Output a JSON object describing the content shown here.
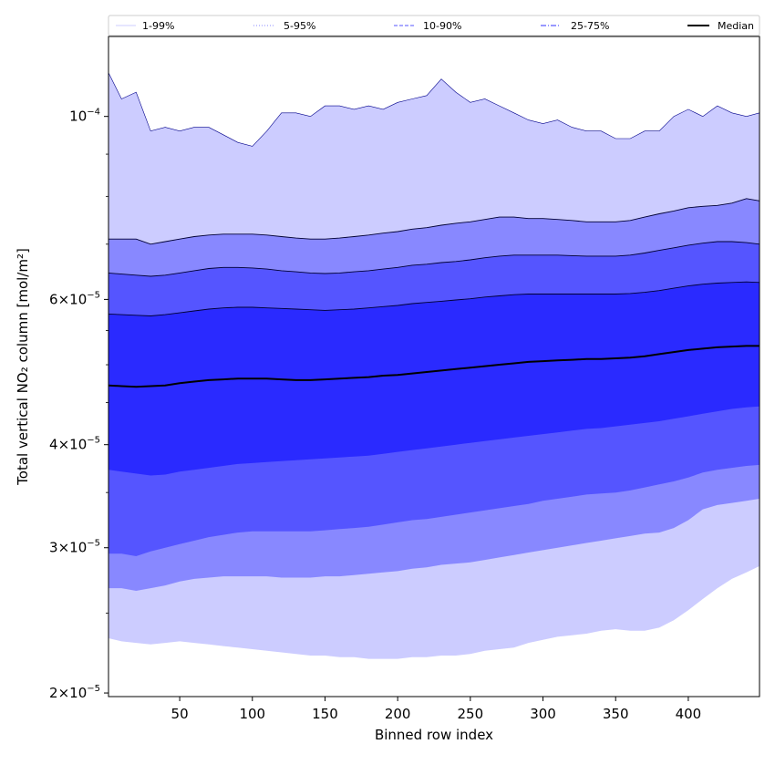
{
  "chart_data": {
    "type": "area",
    "xlabel": "Binned row index",
    "ylabel": "Total vertical NO₂ column [mol/m²]",
    "y_scale": "log",
    "xlim": [
      1,
      449
    ],
    "ylim": [
      1.98e-05,
      0.000125
    ],
    "x_ticks": [
      50,
      100,
      150,
      200,
      250,
      300,
      350,
      400
    ],
    "x_tick_labels": [
      "50",
      "100",
      "150",
      "200",
      "250",
      "300",
      "350",
      "400"
    ],
    "y_ticks": [
      {
        "value": 2e-05,
        "mantissa": "2",
        "exponent": "−5"
      },
      {
        "value": 3e-05,
        "mantissa": "3",
        "exponent": "−5"
      },
      {
        "value": 4e-05,
        "mantissa": "4",
        "exponent": "−5"
      },
      {
        "value": 6e-05,
        "mantissa": "6",
        "exponent": "−5"
      },
      {
        "value": 0.0001,
        "mantissa": "",
        "exponent": "−4"
      }
    ],
    "grid": false,
    "legend_position": "top (above plot, single row)",
    "legend": [
      {
        "label": "1-99%",
        "color": "#ccccff",
        "line": "solid"
      },
      {
        "label": "5-95%",
        "color": "#8888ff",
        "line": "dotted"
      },
      {
        "label": "10-90%",
        "color": "#5555ff",
        "line": "dashed"
      },
      {
        "label": "25-75%",
        "color": "#3333ff",
        "line": "dashdot"
      },
      {
        "label": "Median",
        "color": "#000000",
        "line": "solid"
      }
    ],
    "x": [
      1,
      10,
      20,
      30,
      40,
      50,
      60,
      70,
      80,
      90,
      100,
      110,
      120,
      130,
      140,
      150,
      160,
      170,
      180,
      190,
      200,
      210,
      220,
      230,
      240,
      250,
      260,
      270,
      280,
      290,
      300,
      310,
      320,
      330,
      340,
      350,
      360,
      370,
      380,
      390,
      400,
      410,
      420,
      430,
      440,
      449
    ],
    "series": [
      {
        "name": "1-99%",
        "color": "#ccccff",
        "lower": [
          2.33e-05,
          2.31e-05,
          2.3e-05,
          2.29e-05,
          2.3e-05,
          2.31e-05,
          2.3e-05,
          2.29e-05,
          2.28e-05,
          2.27e-05,
          2.26e-05,
          2.25e-05,
          2.24e-05,
          2.23e-05,
          2.22e-05,
          2.22e-05,
          2.21e-05,
          2.21e-05,
          2.2e-05,
          2.2e-05,
          2.2e-05,
          2.21e-05,
          2.21e-05,
          2.22e-05,
          2.22e-05,
          2.23e-05,
          2.25e-05,
          2.26e-05,
          2.27e-05,
          2.3e-05,
          2.32e-05,
          2.34e-05,
          2.35e-05,
          2.36e-05,
          2.38e-05,
          2.39e-05,
          2.38e-05,
          2.38e-05,
          2.4e-05,
          2.45e-05,
          2.52e-05,
          2.6e-05,
          2.68e-05,
          2.75e-05,
          2.8e-05,
          2.85e-05
        ],
        "upper": [
          0.000113,
          0.000105,
          0.000107,
          9.6e-05,
          9.7e-05,
          9.6e-05,
          9.7e-05,
          9.7e-05,
          9.5e-05,
          9.3e-05,
          9.2e-05,
          9.6e-05,
          0.000101,
          0.000101,
          0.0001,
          0.000103,
          0.000103,
          0.000102,
          0.000103,
          0.000102,
          0.000104,
          0.000105,
          0.000106,
          0.000111,
          0.000107,
          0.000104,
          0.000105,
          0.000103,
          0.000101,
          9.9e-05,
          9.8e-05,
          9.9e-05,
          9.7e-05,
          9.6e-05,
          9.6e-05,
          9.4e-05,
          9.4e-05,
          9.6e-05,
          9.6e-05,
          0.0001,
          0.000102,
          0.0001,
          0.000103,
          0.000101,
          0.0001,
          0.000101
        ]
      },
      {
        "name": "5-95%",
        "color": "#8888ff",
        "lower": [
          2.68e-05,
          2.68e-05,
          2.66e-05,
          2.68e-05,
          2.7e-05,
          2.73e-05,
          2.75e-05,
          2.76e-05,
          2.77e-05,
          2.77e-05,
          2.77e-05,
          2.77e-05,
          2.76e-05,
          2.76e-05,
          2.76e-05,
          2.77e-05,
          2.77e-05,
          2.78e-05,
          2.79e-05,
          2.8e-05,
          2.81e-05,
          2.83e-05,
          2.84e-05,
          2.86e-05,
          2.87e-05,
          2.88e-05,
          2.9e-05,
          2.92e-05,
          2.94e-05,
          2.96e-05,
          2.98e-05,
          3e-05,
          3.02e-05,
          3.04e-05,
          3.06e-05,
          3.08e-05,
          3.1e-05,
          3.12e-05,
          3.13e-05,
          3.17e-05,
          3.24e-05,
          3.34e-05,
          3.38e-05,
          3.4e-05,
          3.42e-05,
          3.44e-05
        ],
        "upper": [
          7.1e-05,
          7.1e-05,
          7.1e-05,
          7e-05,
          7.05e-05,
          7.1e-05,
          7.15e-05,
          7.18e-05,
          7.2e-05,
          7.2e-05,
          7.2e-05,
          7.18e-05,
          7.15e-05,
          7.12e-05,
          7.1e-05,
          7.1e-05,
          7.12e-05,
          7.15e-05,
          7.18e-05,
          7.22e-05,
          7.25e-05,
          7.3e-05,
          7.33e-05,
          7.38e-05,
          7.42e-05,
          7.45e-05,
          7.5e-05,
          7.55e-05,
          7.55e-05,
          7.52e-05,
          7.52e-05,
          7.5e-05,
          7.48e-05,
          7.45e-05,
          7.45e-05,
          7.45e-05,
          7.48e-05,
          7.55e-05,
          7.62e-05,
          7.68e-05,
          7.75e-05,
          7.78e-05,
          7.8e-05,
          7.85e-05,
          7.95e-05,
          7.9e-05
        ]
      },
      {
        "name": "10-90%",
        "color": "#5555ff",
        "lower": [
          2.95e-05,
          2.95e-05,
          2.93e-05,
          2.97e-05,
          3e-05,
          3.03e-05,
          3.06e-05,
          3.09e-05,
          3.11e-05,
          3.13e-05,
          3.14e-05,
          3.14e-05,
          3.14e-05,
          3.14e-05,
          3.14e-05,
          3.15e-05,
          3.16e-05,
          3.17e-05,
          3.18e-05,
          3.2e-05,
          3.22e-05,
          3.24e-05,
          3.25e-05,
          3.27e-05,
          3.29e-05,
          3.31e-05,
          3.33e-05,
          3.35e-05,
          3.37e-05,
          3.39e-05,
          3.42e-05,
          3.44e-05,
          3.46e-05,
          3.48e-05,
          3.49e-05,
          3.5e-05,
          3.52e-05,
          3.55e-05,
          3.58e-05,
          3.61e-05,
          3.65e-05,
          3.7e-05,
          3.73e-05,
          3.75e-05,
          3.77e-05,
          3.78e-05
        ],
        "upper": [
          6.46e-05,
          6.44e-05,
          6.42e-05,
          6.4e-05,
          6.42e-05,
          6.46e-05,
          6.5e-05,
          6.54e-05,
          6.56e-05,
          6.56e-05,
          6.55e-05,
          6.53e-05,
          6.5e-05,
          6.48e-05,
          6.46e-05,
          6.45e-05,
          6.46e-05,
          6.48e-05,
          6.5e-05,
          6.53e-05,
          6.56e-05,
          6.6e-05,
          6.62e-05,
          6.65e-05,
          6.67e-05,
          6.7e-05,
          6.74e-05,
          6.77e-05,
          6.79e-05,
          6.79e-05,
          6.79e-05,
          6.79e-05,
          6.78e-05,
          6.77e-05,
          6.77e-05,
          6.77e-05,
          6.79e-05,
          6.83e-05,
          6.88e-05,
          6.93e-05,
          6.98e-05,
          7.02e-05,
          7.05e-05,
          7.05e-05,
          7.03e-05,
          7e-05
        ]
      },
      {
        "name": "25-75%",
        "color": "#2a2aff",
        "lower": [
          3.73e-05,
          3.71e-05,
          3.69e-05,
          3.67e-05,
          3.68e-05,
          3.71e-05,
          3.73e-05,
          3.75e-05,
          3.77e-05,
          3.79e-05,
          3.8e-05,
          3.81e-05,
          3.82e-05,
          3.83e-05,
          3.84e-05,
          3.85e-05,
          3.86e-05,
          3.87e-05,
          3.88e-05,
          3.9e-05,
          3.92e-05,
          3.94e-05,
          3.96e-05,
          3.98e-05,
          4e-05,
          4.02e-05,
          4.04e-05,
          4.06e-05,
          4.08e-05,
          4.1e-05,
          4.12e-05,
          4.14e-05,
          4.16e-05,
          4.18e-05,
          4.19e-05,
          4.21e-05,
          4.23e-05,
          4.25e-05,
          4.27e-05,
          4.3e-05,
          4.33e-05,
          4.36e-05,
          4.39e-05,
          4.42e-05,
          4.44e-05,
          4.45e-05
        ],
        "upper": [
          5.76e-05,
          5.75e-05,
          5.74e-05,
          5.73e-05,
          5.75e-05,
          5.78e-05,
          5.81e-05,
          5.84e-05,
          5.86e-05,
          5.87e-05,
          5.87e-05,
          5.86e-05,
          5.85e-05,
          5.84e-05,
          5.83e-05,
          5.82e-05,
          5.83e-05,
          5.84e-05,
          5.86e-05,
          5.88e-05,
          5.9e-05,
          5.93e-05,
          5.95e-05,
          5.97e-05,
          5.99e-05,
          6.01e-05,
          6.04e-05,
          6.06e-05,
          6.08e-05,
          6.09e-05,
          6.09e-05,
          6.09e-05,
          6.09e-05,
          6.09e-05,
          6.09e-05,
          6.09e-05,
          6.1e-05,
          6.12e-05,
          6.15e-05,
          6.19e-05,
          6.23e-05,
          6.26e-05,
          6.28e-05,
          6.29e-05,
          6.3e-05,
          6.29e-05
        ]
      },
      {
        "name": "Median",
        "color": "#000000",
        "values": [
          4.72e-05,
          4.71e-05,
          4.7e-05,
          4.71e-05,
          4.72e-05,
          4.75e-05,
          4.77e-05,
          4.79e-05,
          4.8e-05,
          4.81e-05,
          4.81e-05,
          4.81e-05,
          4.8e-05,
          4.79e-05,
          4.79e-05,
          4.8e-05,
          4.81e-05,
          4.82e-05,
          4.83e-05,
          4.85e-05,
          4.86e-05,
          4.88e-05,
          4.9e-05,
          4.92e-05,
          4.94e-05,
          4.96e-05,
          4.98e-05,
          5e-05,
          5.02e-05,
          5.04e-05,
          5.05e-05,
          5.06e-05,
          5.07e-05,
          5.08e-05,
          5.08e-05,
          5.09e-05,
          5.1e-05,
          5.12e-05,
          5.15e-05,
          5.18e-05,
          5.21e-05,
          5.23e-05,
          5.25e-05,
          5.26e-05,
          5.27e-05,
          5.27e-05
        ]
      }
    ]
  }
}
